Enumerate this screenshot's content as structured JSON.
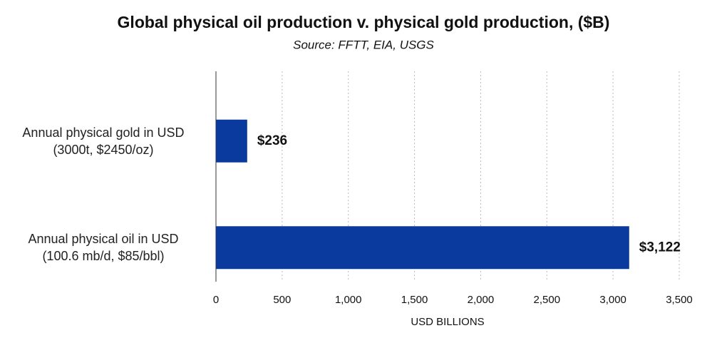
{
  "chart_data": {
    "type": "hbar",
    "title": "Global physical oil production v. physical gold production, ($B)",
    "subtitle": "Source:  FFTT, EIA, USGS",
    "x_label": "USD BILLIONS",
    "categories": [
      "Annual physical gold in USD\n(3000t, $2450/oz)",
      "Annual physical oil in USD\n(100.6 mb/d, $85/bbl)"
    ],
    "values": [
      236,
      3122
    ],
    "value_labels": [
      "$236",
      "$3,122"
    ],
    "color": "#0b3a9f",
    "xlim": [
      0,
      3500
    ],
    "xticks": [
      0,
      500,
      {
        "value": 1000,
        "label": "1,000"
      },
      {
        "value": 1500,
        "label": "1,500"
      },
      {
        "value": 2000,
        "label": "2,000"
      },
      {
        "value": 2500,
        "label": "2,500"
      },
      {
        "value": 3000,
        "label": "3,000"
      },
      {
        "value": 3500,
        "label": "3,500"
      }
    ],
    "grid": true
  }
}
